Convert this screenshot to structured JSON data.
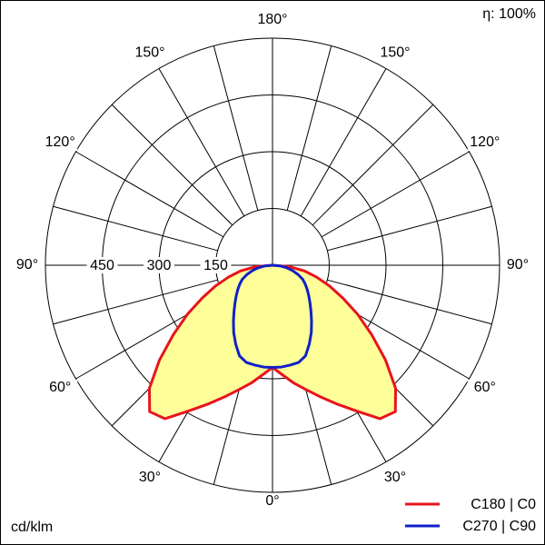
{
  "chart_data": {
    "type": "polar",
    "efficiency_label": "η: 100%",
    "unit_label": "cd/klm",
    "x": [
      0,
      5,
      10,
      15,
      20,
      25,
      30,
      35,
      40,
      45,
      50,
      55,
      60,
      65,
      70,
      75,
      80,
      85,
      90
    ],
    "series": [
      {
        "name": "C180 | C0",
        "color": "#e8141c",
        "fill": "#ffff99",
        "values": [
          270,
          290,
          315,
          340,
          370,
          405,
          445,
          495,
          505,
          460,
          390,
          320,
          260,
          205,
          160,
          120,
          85,
          45,
          0
        ]
      },
      {
        "name": "C270 | C90",
        "color": "#1020c8",
        "values": [
          270,
          270,
          268,
          266,
          255,
          230,
          205,
          180,
          158,
          140,
          125,
          112,
          100,
          88,
          72,
          55,
          38,
          20,
          0
        ]
      }
    ],
    "rlim": [
      0,
      600
    ],
    "rticks": [
      150,
      300,
      450
    ],
    "angle_grid": [
      0,
      15,
      30,
      45,
      60,
      75,
      90,
      105,
      120,
      135,
      150,
      165,
      180
    ],
    "angle_labels": [
      {
        "value": 0,
        "label": "0°"
      },
      {
        "value": 30,
        "label": "30°"
      },
      {
        "value": 60,
        "label": "60°"
      },
      {
        "value": 90,
        "label": "90°"
      },
      {
        "value": 120,
        "label": "120°"
      },
      {
        "value": 150,
        "label": "150°"
      },
      {
        "value": 180,
        "label": "180°"
      }
    ]
  }
}
